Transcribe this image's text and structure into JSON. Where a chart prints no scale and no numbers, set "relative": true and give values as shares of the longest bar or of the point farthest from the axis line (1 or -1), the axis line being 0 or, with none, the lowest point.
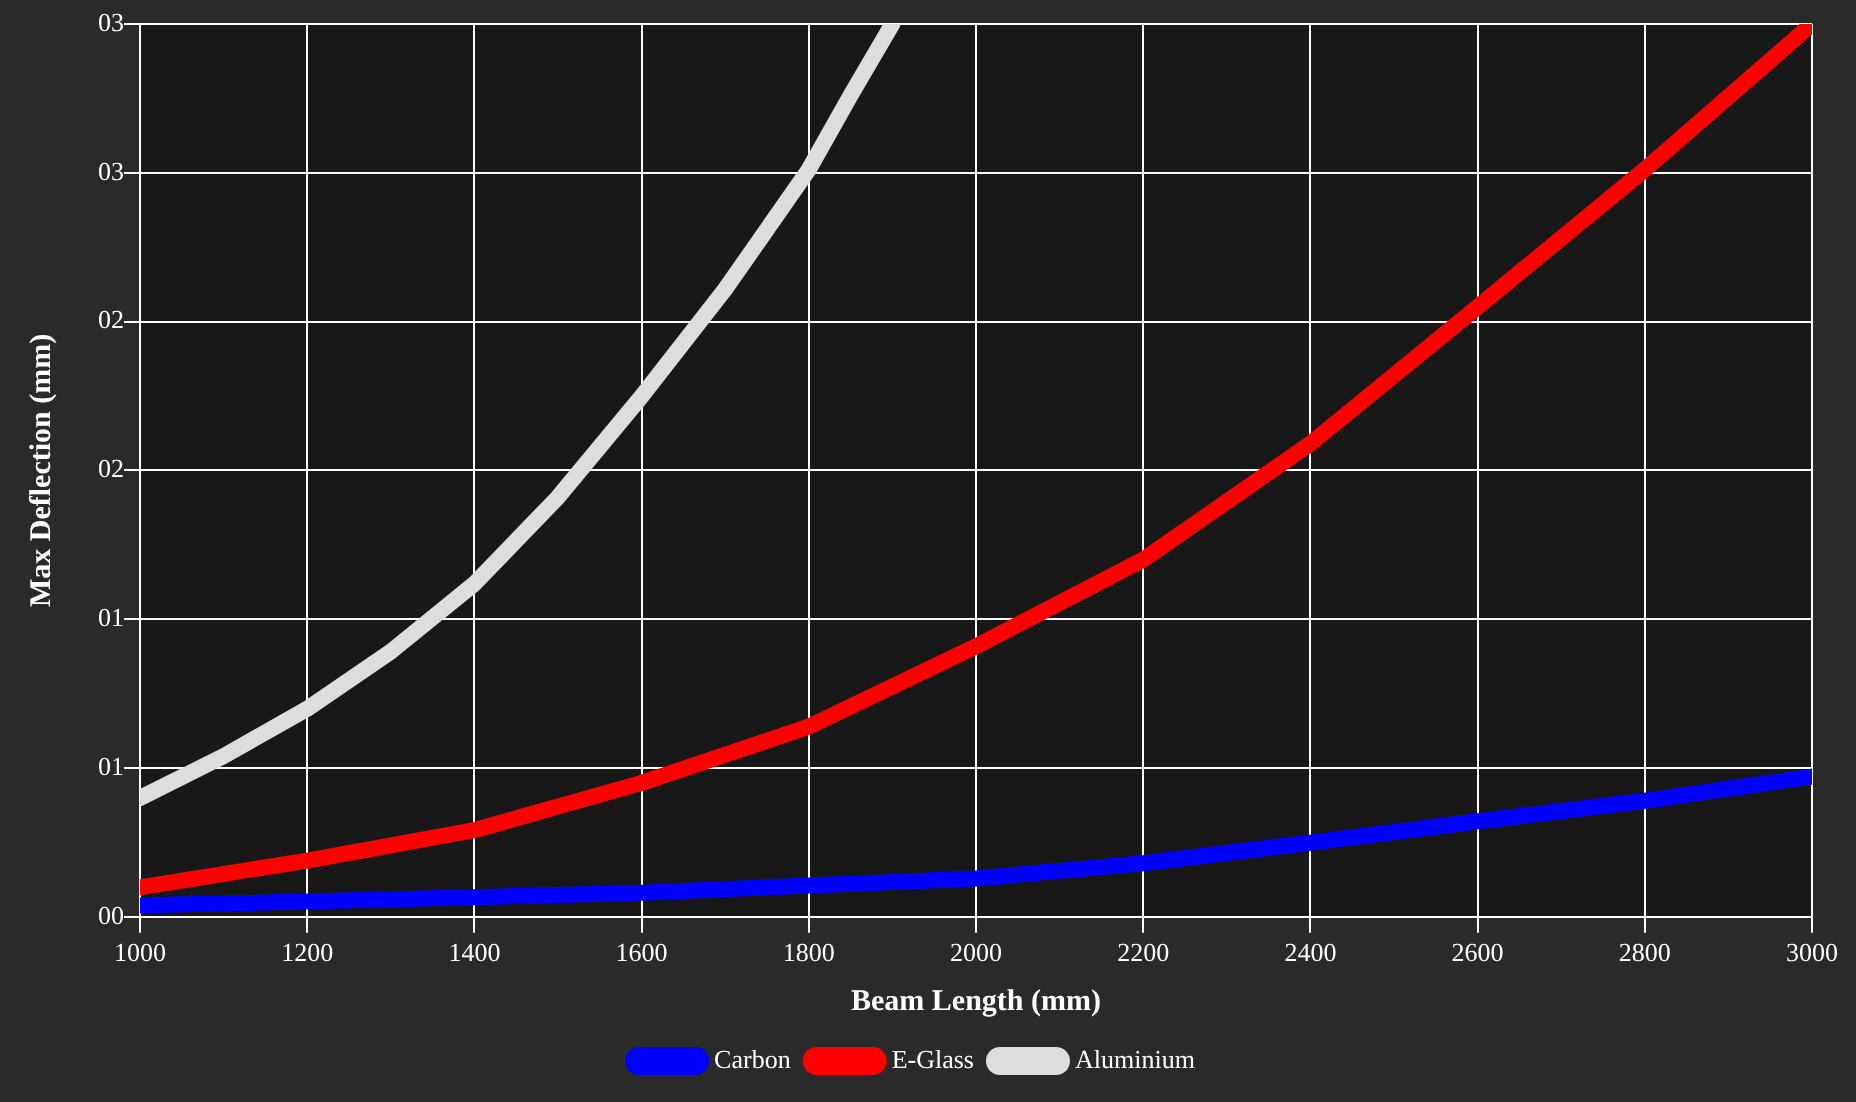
{
  "chart_data": {
    "type": "line",
    "xlabel": "Beam Length (mm)",
    "ylabel": "Max Deflection (mm)",
    "xlim": [
      1000,
      3000
    ],
    "xticks": [
      1000,
      1200,
      1400,
      1600,
      1800,
      2000,
      2200,
      2400,
      2600,
      2800,
      3000
    ],
    "relative": true,
    "annotations": [
      "00",
      "01",
      "01",
      "02",
      "02",
      "03",
      "03"
    ],
    "grid": true,
    "legend": "bottom",
    "marker": "none",
    "line_style": "solid",
    "series": [
      {
        "name": "Carbon",
        "color": "#0000ff",
        "x": [
          1000,
          1200,
          1600,
          2000,
          2200,
          2400,
          2600,
          2800,
          3000
        ],
        "values": [
          0.013,
          0.017,
          0.027,
          0.043,
          0.06,
          0.083,
          0.107,
          0.13,
          0.157
        ]
      },
      {
        "name": "E-Glass",
        "color": "#ff0000",
        "x": [
          1000,
          1200,
          1400,
          1600,
          1800,
          2000,
          2200,
          2400,
          2600,
          2800,
          3000
        ],
        "values": [
          0.033,
          0.063,
          0.097,
          0.15,
          0.213,
          0.303,
          0.4,
          0.53,
          0.683,
          0.837,
          1
        ]
      },
      {
        "name": "Aluminium",
        "color": "#dddddd",
        "x": [
          1000,
          1100,
          1200,
          1300,
          1400,
          1500,
          1600,
          1700,
          1800,
          1850,
          1900
        ],
        "values": [
          0.133,
          0.18,
          0.233,
          0.297,
          0.373,
          0.47,
          0.583,
          0.703,
          0.837,
          0.92,
          1
        ]
      }
    ]
  }
}
